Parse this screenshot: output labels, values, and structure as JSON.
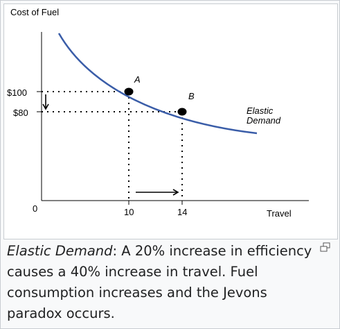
{
  "chart_data": {
    "type": "line",
    "ylabel": "Cost of Fuel",
    "xlabel": "Travel",
    "origin_label": "0",
    "curve_label": [
      "Elastic",
      "Demand"
    ],
    "series": [
      {
        "name": "Elastic Demand",
        "color": "#3a5da8"
      }
    ],
    "points": [
      {
        "label": "A",
        "x": 10,
        "y": 100,
        "x_tick": "10",
        "y_tick": "$100"
      },
      {
        "label": "B",
        "x": 14,
        "y": 80,
        "x_tick": "14",
        "y_tick": "$80"
      }
    ],
    "annotations": [
      {
        "kind": "arrow-down",
        "from_y": 100,
        "to_y": 80
      },
      {
        "kind": "arrow-right",
        "from_x": 10,
        "to_x": 14
      }
    ]
  },
  "caption": {
    "term": "Elastic Demand",
    "text": ": A 20% increase in efficiency causes a 40% increase in travel. Fuel consumption increases and the Jevons paradox occurs."
  },
  "icons": {
    "enlarge": "enlarge-icon"
  }
}
